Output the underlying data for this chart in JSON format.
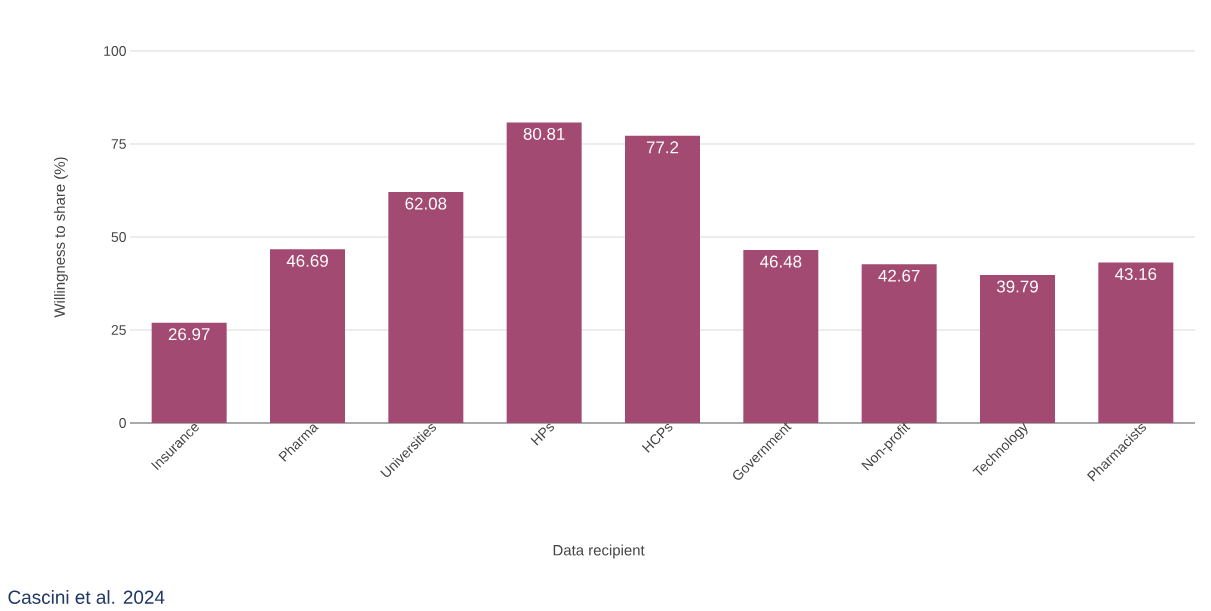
{
  "chart_data": {
    "type": "bar",
    "categories": [
      "Insurance",
      "Pharma",
      "Universities",
      "HPs",
      "HCPs",
      "Government",
      "Non-profit",
      "Technology",
      "Pharmacists"
    ],
    "values": [
      26.97,
      46.69,
      62.08,
      80.81,
      77.2,
      46.48,
      42.67,
      39.79,
      43.16
    ],
    "color": "#a34a72",
    "data_labels": true,
    "ylim": [
      0,
      100
    ],
    "yticks": [
      0,
      25,
      50,
      75,
      100
    ],
    "grid": "y",
    "xlabel": "Data recipient",
    "ylabel": "Willingness to share (%)",
    "annotations": [
      "Cascini et al. 2024"
    ]
  }
}
